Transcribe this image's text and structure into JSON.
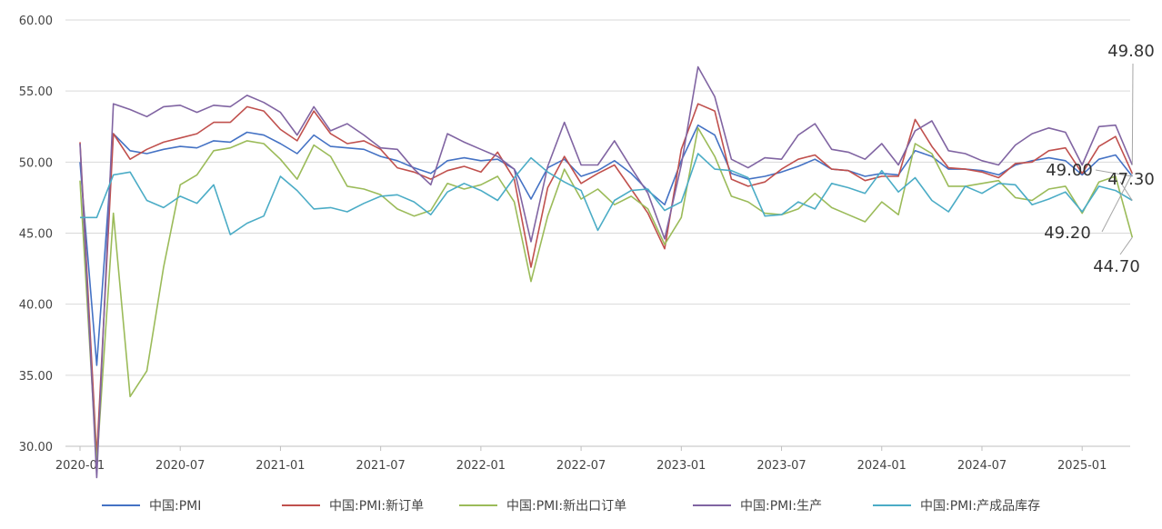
{
  "chart_data": {
    "type": "line",
    "title": "",
    "ylim": [
      30,
      60
    ],
    "yticks": [
      "30.00",
      "35.00",
      "40.00",
      "45.00",
      "50.00",
      "55.00",
      "60.00"
    ],
    "xticks": [
      "2020-01",
      "2020-07",
      "2021-01",
      "2021-07",
      "2022-01",
      "2022-07",
      "2023-01",
      "2023-07",
      "2024-01",
      "2024-07",
      "2025-01"
    ],
    "grid": true,
    "legend_position": "bottom",
    "x": [
      "2020-01",
      "2020-02",
      "2020-03",
      "2020-04",
      "2020-05",
      "2020-06",
      "2020-07",
      "2020-08",
      "2020-09",
      "2020-10",
      "2020-11",
      "2020-12",
      "2021-01",
      "2021-02",
      "2021-03",
      "2021-04",
      "2021-05",
      "2021-06",
      "2021-07",
      "2021-08",
      "2021-09",
      "2021-10",
      "2021-11",
      "2021-12",
      "2022-01",
      "2022-02",
      "2022-03",
      "2022-04",
      "2022-05",
      "2022-06",
      "2022-07",
      "2022-08",
      "2022-09",
      "2022-10",
      "2022-11",
      "2022-12",
      "2023-01",
      "2023-02",
      "2023-03",
      "2023-04",
      "2023-05",
      "2023-06",
      "2023-07",
      "2023-08",
      "2023-09",
      "2023-10",
      "2023-11",
      "2023-12",
      "2024-01",
      "2024-02",
      "2024-03",
      "2024-04",
      "2024-05",
      "2024-06",
      "2024-07",
      "2024-08",
      "2024-09",
      "2024-10",
      "2024-11",
      "2024-12",
      "2025-01",
      "2025-02",
      "2025-03",
      "2025-04"
    ],
    "series": [
      {
        "name": "中国:PMI",
        "color": "#4472C4",
        "values": [
          50.0,
          35.7,
          52.0,
          50.8,
          50.6,
          50.9,
          51.1,
          51.0,
          51.5,
          51.4,
          52.1,
          51.9,
          51.3,
          50.6,
          51.9,
          51.1,
          51.0,
          50.9,
          50.4,
          50.1,
          49.6,
          49.2,
          50.1,
          50.3,
          50.1,
          50.2,
          49.5,
          47.4,
          49.6,
          50.2,
          49.0,
          49.4,
          50.1,
          49.2,
          48.0,
          47.0,
          50.1,
          52.6,
          51.9,
          49.2,
          48.8,
          49.0,
          49.3,
          49.7,
          50.2,
          49.5,
          49.4,
          49.0,
          49.2,
          49.1,
          50.8,
          50.4,
          49.5,
          49.5,
          49.4,
          49.1,
          49.8,
          50.1,
          50.3,
          50.1,
          49.1,
          50.2,
          50.5,
          49.0
        ]
      },
      {
        "name": "中国:PMI:新订单",
        "color": "#C0504D",
        "values": [
          51.4,
          29.3,
          52.0,
          50.2,
          50.9,
          51.4,
          51.7,
          52.0,
          52.8,
          52.8,
          53.9,
          53.6,
          52.3,
          51.5,
          53.6,
          52.0,
          51.3,
          51.5,
          50.9,
          49.6,
          49.3,
          48.8,
          49.4,
          49.7,
          49.3,
          50.7,
          48.8,
          42.6,
          48.2,
          50.4,
          48.5,
          49.2,
          49.8,
          48.1,
          46.4,
          43.9,
          50.9,
          54.1,
          53.6,
          48.8,
          48.3,
          48.6,
          49.5,
          50.2,
          50.5,
          49.5,
          49.4,
          48.7,
          49.0,
          49.0,
          53.0,
          51.1,
          49.6,
          49.5,
          49.3,
          48.9,
          49.9,
          50.0,
          50.8,
          51.0,
          49.2,
          51.1,
          51.8,
          49.2
        ]
      },
      {
        "name": "中国:PMI:新出口订单",
        "color": "#9BBB59",
        "values": [
          48.7,
          28.7,
          46.4,
          33.5,
          35.3,
          42.6,
          48.4,
          49.1,
          50.8,
          51.0,
          51.5,
          51.3,
          50.2,
          48.8,
          51.2,
          50.4,
          48.3,
          48.1,
          47.7,
          46.7,
          46.2,
          46.6,
          48.5,
          48.1,
          48.4,
          49.0,
          47.2,
          41.6,
          46.2,
          49.5,
          47.4,
          48.1,
          47.0,
          47.6,
          46.7,
          44.2,
          46.1,
          52.4,
          50.4,
          47.6,
          47.2,
          46.4,
          46.3,
          46.7,
          47.8,
          46.8,
          46.3,
          45.8,
          47.2,
          46.3,
          51.3,
          50.6,
          48.3,
          48.3,
          48.5,
          48.7,
          47.5,
          47.3,
          48.1,
          48.3,
          46.4,
          48.6,
          49.0,
          44.7
        ]
      },
      {
        "name": "中国:PMI:生产",
        "color": "#8064A2",
        "values": [
          51.3,
          27.8,
          54.1,
          53.7,
          53.2,
          53.9,
          54.0,
          53.5,
          54.0,
          53.9,
          54.7,
          54.2,
          53.5,
          51.9,
          53.9,
          52.2,
          52.7,
          51.9,
          51.0,
          50.9,
          49.5,
          48.4,
          52.0,
          51.4,
          50.9,
          50.4,
          49.5,
          44.4,
          49.7,
          52.8,
          49.8,
          49.8,
          51.5,
          49.6,
          47.8,
          44.6,
          49.8,
          56.7,
          54.6,
          50.2,
          49.6,
          50.3,
          50.2,
          51.9,
          52.7,
          50.9,
          50.7,
          50.2,
          51.3,
          49.8,
          52.2,
          52.9,
          50.8,
          50.6,
          50.1,
          49.8,
          51.2,
          52.0,
          52.4,
          52.1,
          49.8,
          52.5,
          52.6,
          49.8
        ]
      },
      {
        "name": "中国:PMI:产成品库存",
        "color": "#4BACC6",
        "values": [
          46.1,
          46.1,
          49.1,
          49.3,
          47.3,
          46.8,
          47.6,
          47.1,
          48.4,
          44.9,
          45.7,
          46.2,
          49.0,
          48.0,
          46.7,
          46.8,
          46.5,
          47.1,
          47.6,
          47.7,
          47.2,
          46.3,
          47.9,
          48.5,
          48.0,
          47.3,
          48.9,
          50.3,
          49.3,
          48.6,
          48.0,
          45.2,
          47.3,
          48.0,
          48.1,
          46.6,
          47.2,
          50.6,
          49.5,
          49.4,
          48.9,
          46.2,
          46.3,
          47.2,
          46.7,
          48.5,
          48.2,
          47.8,
          49.4,
          47.9,
          48.9,
          47.3,
          46.5,
          48.3,
          47.8,
          48.5,
          48.4,
          47.0,
          47.4,
          47.9,
          46.5,
          48.3,
          48.0,
          47.3
        ]
      }
    ],
    "annotations": [
      {
        "text": "49.80",
        "series": 3,
        "index": 63
      },
      {
        "text": "49.00",
        "series": 0,
        "index": 63
      },
      {
        "text": "47.30",
        "series": 4,
        "index": 63
      },
      {
        "text": "49.20",
        "series": 1,
        "index": 63
      },
      {
        "text": "44.70",
        "series": 2,
        "index": 63
      }
    ]
  }
}
